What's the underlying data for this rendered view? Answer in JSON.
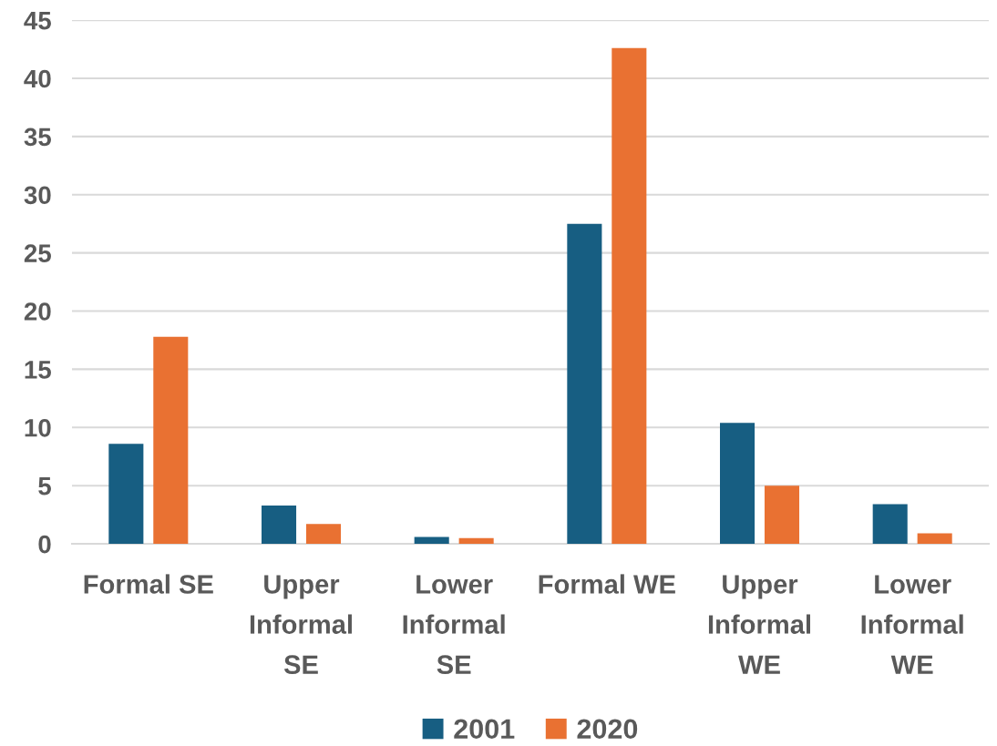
{
  "chart_data": {
    "type": "bar",
    "categories": [
      "Formal SE",
      "Upper Informal SE",
      "Lower Informal SE",
      "Formal WE",
      "Upper Informal WE",
      "Lower Informal WE"
    ],
    "series": [
      {
        "name": "2001",
        "color": "#175e82",
        "values": [
          8.6,
          3.3,
          0.6,
          27.5,
          10.4,
          3.4
        ]
      },
      {
        "name": "2020",
        "color": "#e97132",
        "values": [
          17.8,
          1.7,
          0.5,
          42.6,
          5.0,
          0.9
        ]
      }
    ],
    "ylim": [
      0,
      45
    ],
    "yticks": [
      0,
      5,
      10,
      15,
      20,
      25,
      30,
      35,
      40,
      45
    ],
    "grid": "y",
    "legend": "bottom"
  }
}
